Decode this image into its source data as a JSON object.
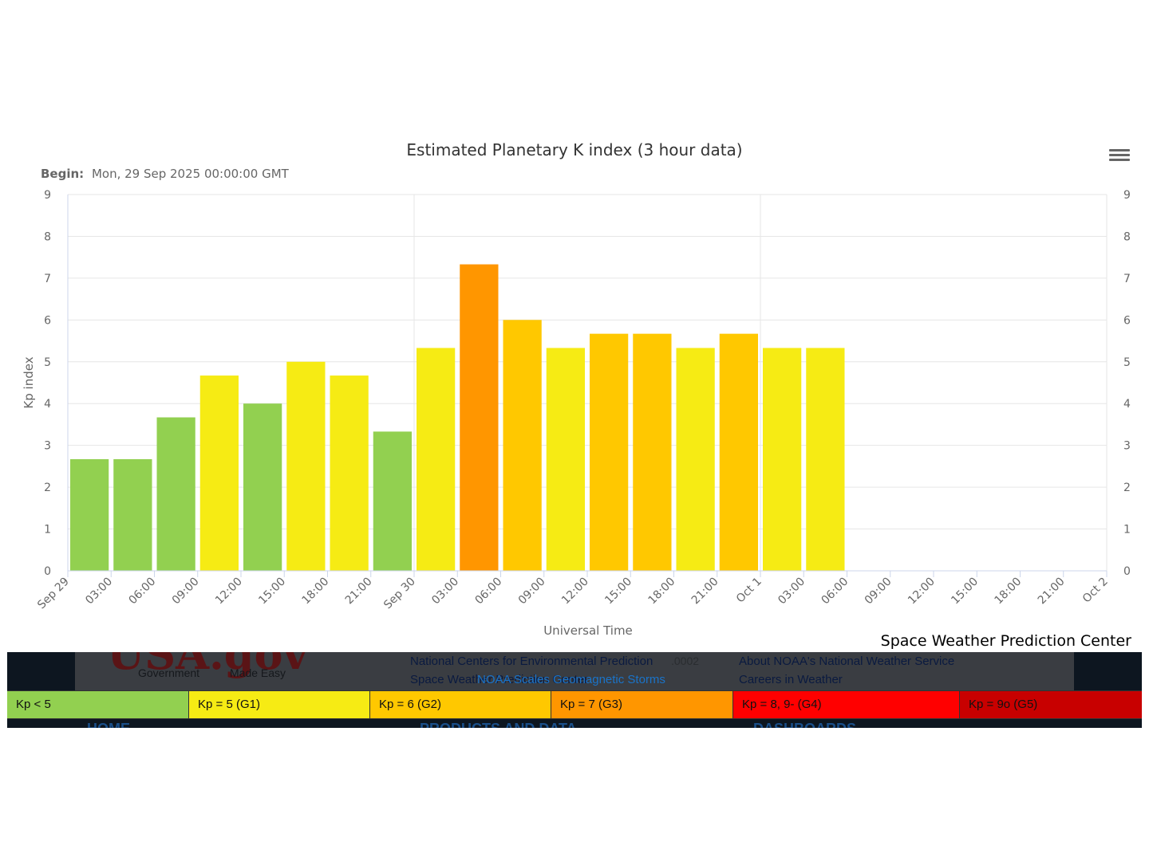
{
  "chart_data": {
    "type": "bar",
    "title": "Estimated Planetary K index (3 hour data)",
    "subtitle_label": "Begin:",
    "subtitle_value": "Mon, 29 Sep 2025 00:00:00 GMT",
    "xlabel": "Universal Time",
    "ylabel": "Kp index",
    "ylim": [
      0,
      9
    ],
    "y_ticks": [
      "0",
      "1",
      "2",
      "3",
      "4",
      "5",
      "6",
      "7",
      "8",
      "9"
    ],
    "x_ticks": [
      "Sep 29",
      "03:00",
      "06:00",
      "09:00",
      "12:00",
      "15:00",
      "18:00",
      "21:00",
      "Sep 30",
      "03:00",
      "06:00",
      "09:00",
      "12:00",
      "15:00",
      "18:00",
      "21:00",
      "Oct 1",
      "03:00",
      "06:00",
      "09:00",
      "12:00",
      "15:00",
      "18:00",
      "21:00",
      "Oct 2"
    ],
    "x_range_hours": [
      0,
      72
    ],
    "bin_hours": 3,
    "values": [
      2.67,
      2.67,
      3.67,
      4.67,
      4.0,
      5.0,
      4.67,
      3.33,
      5.33,
      7.33,
      6.0,
      5.33,
      5.67,
      5.67,
      5.33,
      5.67,
      5.33,
      5.33
    ],
    "grid": true,
    "colors": {
      "kp_below_5": "#92d050",
      "kp_5": "#f6eb14",
      "kp_6": "#ffc800",
      "kp_7": "#ff9600",
      "kp_8": "#ff0000",
      "kp_9": "#c80000"
    }
  },
  "footer": {
    "logo_text": "USA.gov",
    "logo_tag_left": "Government",
    "logo_tag_right": "Made Easy",
    "link_ncep": "National Centers for Environmental Prediction",
    "link_swpc": "Space Weather Prediction Center",
    "link_noaa_nws": "About NOAA's National Weather Service",
    "link_careers": "Careers in Weather",
    "link_noaa_scales": "NOAA Scales Geomagnetic Storms",
    "faded_timestamp": ".0002",
    "nav_home": "HOME",
    "nav_products": "PRODUCTS AND DATA",
    "nav_dashboards": "DASHBOARDS"
  },
  "legend": [
    {
      "label": "Kp < 5",
      "color": "#92d050"
    },
    {
      "label": "Kp = 5 (G1)",
      "color": "#f6eb14"
    },
    {
      "label": "Kp = 6 (G2)",
      "color": "#ffc800"
    },
    {
      "label": "Kp = 7 (G3)",
      "color": "#ff9600"
    },
    {
      "label": "Kp = 8, 9- (G4)",
      "color": "#ff0000"
    },
    {
      "label": "Kp = 9o (G5)",
      "color": "#c80000"
    }
  ],
  "credit": "Space Weather Prediction Center"
}
